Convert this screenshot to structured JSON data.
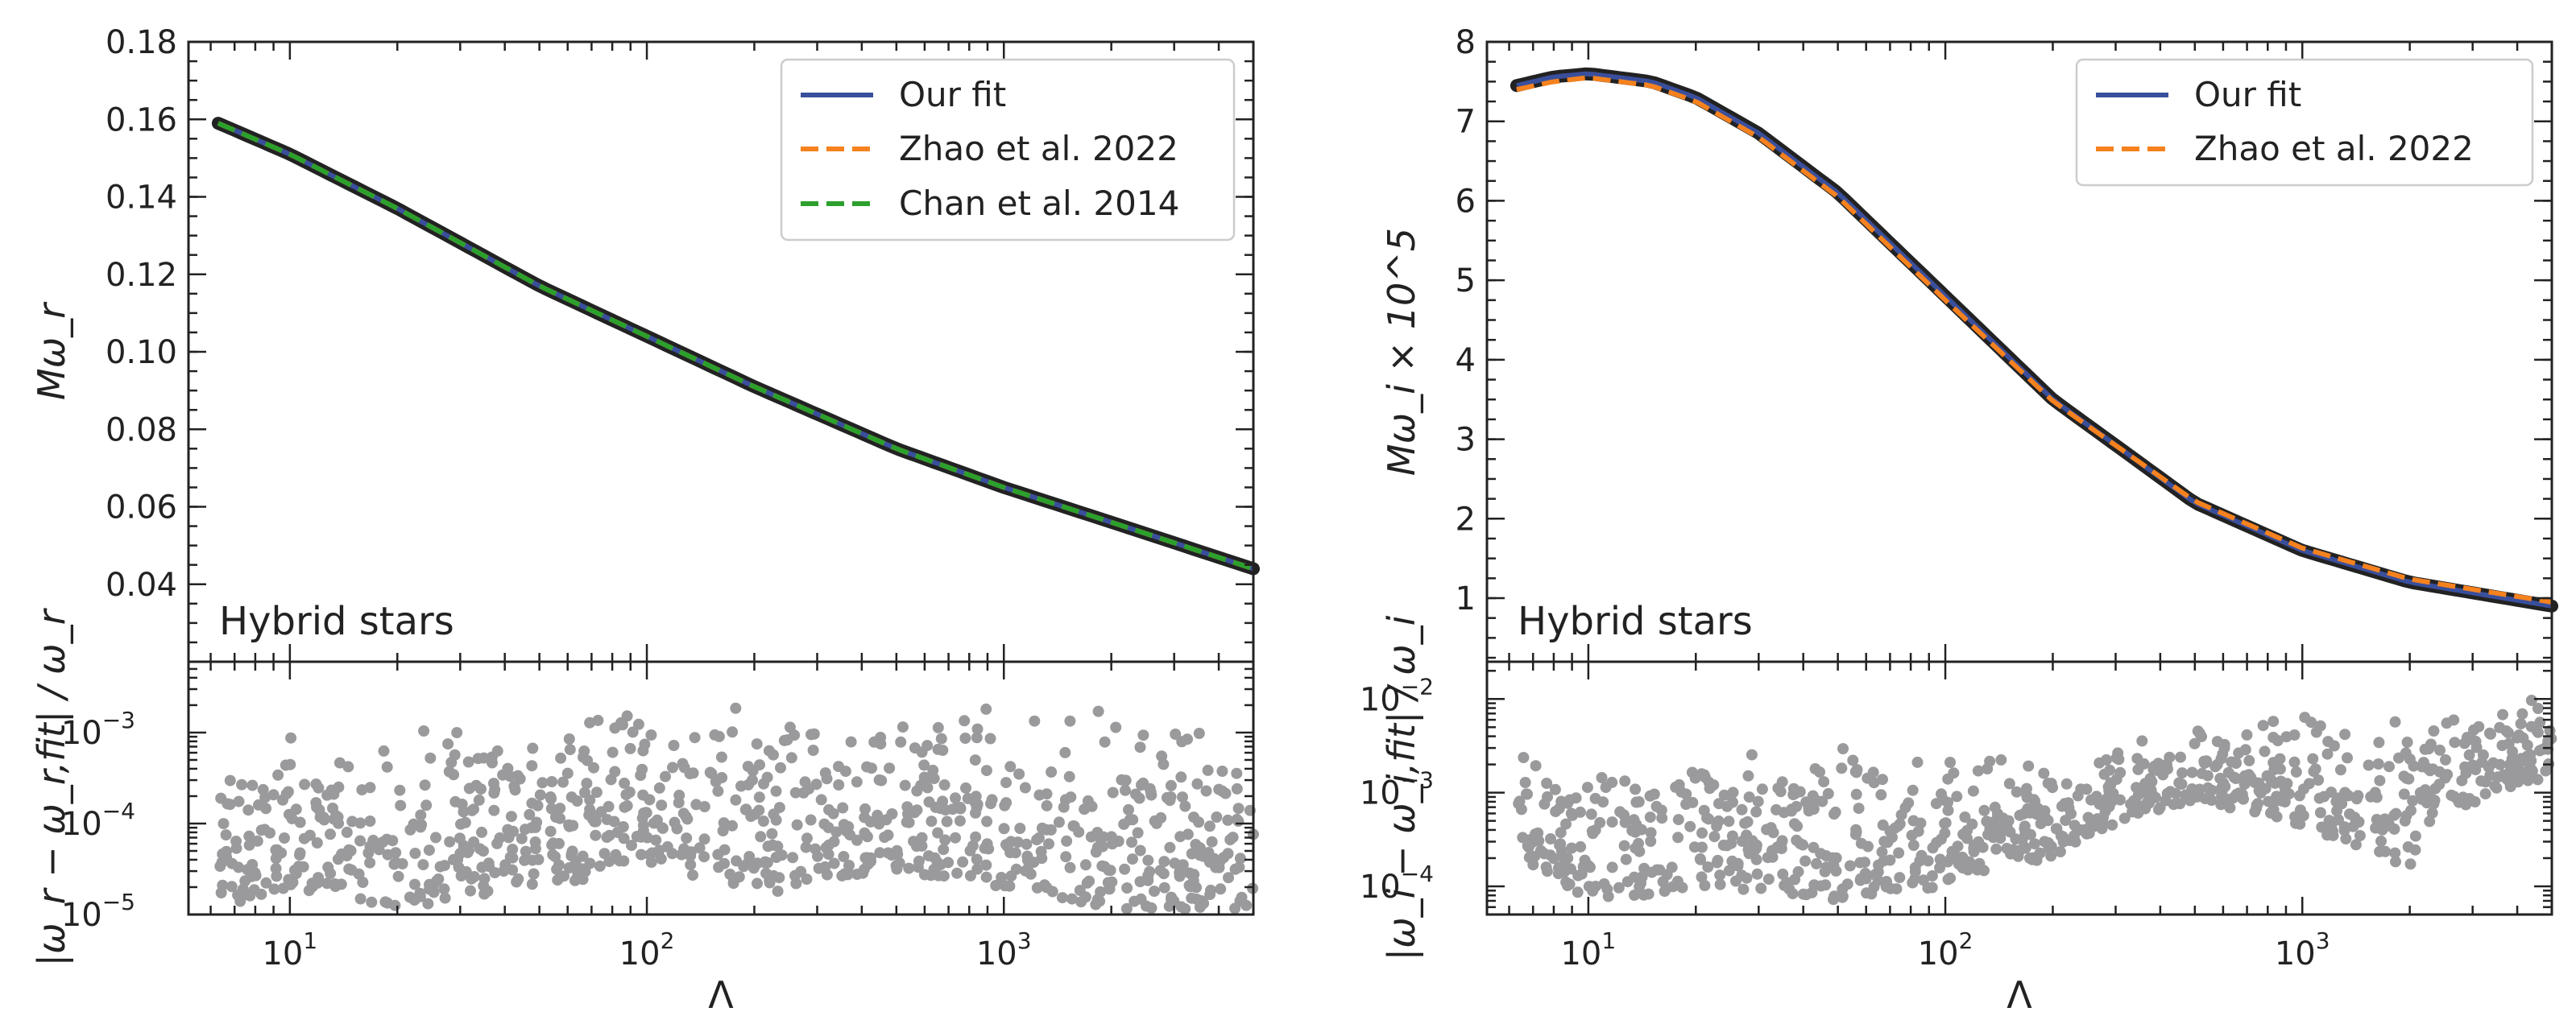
{
  "colors": {
    "our_fit": "#3a4f9c",
    "zhao": "#f5821f",
    "chan": "#2ca02c",
    "scatter": "#9a9a9c",
    "data_outline": "#222222"
  },
  "chart_data": [
    {
      "type": "line",
      "panel": "left-top",
      "xscale": "log",
      "xlim": [
        5.2,
        5000
      ],
      "ylim": [
        0.02,
        0.18
      ],
      "yticks": [
        "0.04",
        "0.06",
        "0.08",
        "0.10",
        "0.12",
        "0.14",
        "0.16",
        "0.18"
      ],
      "ylabel": "Mω_r",
      "annotation": "Hybrid stars",
      "legend_position": "top-right",
      "series": [
        {
          "name": "Our fit",
          "style": "solid",
          "x": [
            6.3,
            10,
            20,
            50,
            100,
            200,
            500,
            1000,
            2000,
            5000
          ],
          "y": [
            0.159,
            0.151,
            0.137,
            0.117,
            0.104,
            0.091,
            0.075,
            0.065,
            0.056,
            0.044
          ]
        },
        {
          "name": "Zhao et al. 2022",
          "style": "dashed",
          "x": [
            6.3,
            10,
            20,
            50,
            100,
            200,
            500,
            1000,
            2000,
            5000
          ],
          "y": [
            0.159,
            0.151,
            0.137,
            0.117,
            0.104,
            0.091,
            0.075,
            0.065,
            0.056,
            0.044
          ]
        },
        {
          "name": "Chan et al. 2014",
          "style": "dashed",
          "x": [
            6.3,
            10,
            20,
            50,
            100,
            200,
            500,
            1000,
            2000,
            5000
          ],
          "y": [
            0.159,
            0.151,
            0.137,
            0.117,
            0.104,
            0.091,
            0.075,
            0.065,
            0.056,
            0.044
          ]
        }
      ]
    },
    {
      "type": "scatter",
      "panel": "left-bottom",
      "xscale": "log",
      "yscale": "log",
      "xlim": [
        5.2,
        5000
      ],
      "ylim": [
        1e-05,
        0.006
      ],
      "xticks": [
        "10",
        "10",
        "10"
      ],
      "xtick_exponents": [
        "1",
        "2",
        "3"
      ],
      "yticks": [
        "10",
        "10",
        "10"
      ],
      "ytick_exponents": [
        "−5",
        "−4",
        "−3"
      ],
      "xlabel": "Λ",
      "ylabel": "|ω_r − ω_r,fit| / ω_r",
      "band": {
        "x": [
          6.3,
          10,
          20,
          50,
          100,
          200,
          500,
          1000,
          2000,
          5000
        ],
        "upper": [
          0.0006,
          0.0009,
          0.0012,
          0.0016,
          0.0018,
          0.0019,
          0.0019,
          0.002,
          0.0021,
          0.0025
        ],
        "lower": [
          1e-05,
          2e-05,
          1e-05,
          2e-05,
          3e-05,
          1.5e-05,
          3e-05,
          2e-05,
          1e-05,
          1e-05
        ]
      }
    },
    {
      "type": "line",
      "panel": "right-top",
      "xscale": "log",
      "xlim": [
        5.2,
        5000
      ],
      "ylim": [
        0.2,
        8
      ],
      "yticks": [
        "1",
        "2",
        "3",
        "4",
        "5",
        "6",
        "7",
        "8"
      ],
      "ylabel": "Mω_i × 10^5",
      "annotation": "Hybrid stars",
      "legend_position": "top-right",
      "series": [
        {
          "name": "Our fit",
          "style": "solid",
          "x": [
            6.3,
            8,
            10,
            15,
            20,
            30,
            50,
            100,
            200,
            500,
            1000,
            2000,
            5000
          ],
          "y": [
            7.45,
            7.56,
            7.6,
            7.5,
            7.3,
            6.85,
            6.1,
            4.8,
            3.5,
            2.2,
            1.6,
            1.2,
            0.9
          ]
        },
        {
          "name": "Zhao et al. 2022",
          "style": "dashed",
          "x": [
            6.3,
            8,
            10,
            15,
            20,
            30,
            50,
            100,
            200,
            500,
            1000,
            2000,
            5000
          ],
          "y": [
            7.4,
            7.5,
            7.55,
            7.45,
            7.25,
            6.8,
            6.05,
            4.75,
            3.48,
            2.22,
            1.63,
            1.24,
            0.95
          ]
        }
      ]
    },
    {
      "type": "scatter",
      "panel": "right-bottom",
      "xscale": "log",
      "yscale": "log",
      "xlim": [
        5.2,
        5000
      ],
      "ylim": [
        5e-05,
        0.025
      ],
      "xticks": [
        "10",
        "10",
        "10"
      ],
      "xtick_exponents": [
        "1",
        "2",
        "3"
      ],
      "yticks": [
        "10",
        "10",
        "10"
      ],
      "ytick_exponents": [
        "−4",
        "−3",
        "−2"
      ],
      "xlabel": "Λ",
      "ylabel": "|ω_i − ω_i,fit| / ω_i",
      "band": {
        "x": [
          6.3,
          10,
          20,
          50,
          100,
          200,
          500,
          1000,
          2000,
          5000
        ],
        "upper": [
          0.005,
          0.0015,
          0.0025,
          0.0035,
          0.003,
          0.002,
          0.005,
          0.008,
          0.01,
          0.012
        ],
        "lower": [
          0.0002,
          6e-05,
          0.0001,
          7e-05,
          0.0001,
          0.0002,
          0.0008,
          0.0004,
          0.00015,
          0.0015
        ]
      }
    }
  ]
}
